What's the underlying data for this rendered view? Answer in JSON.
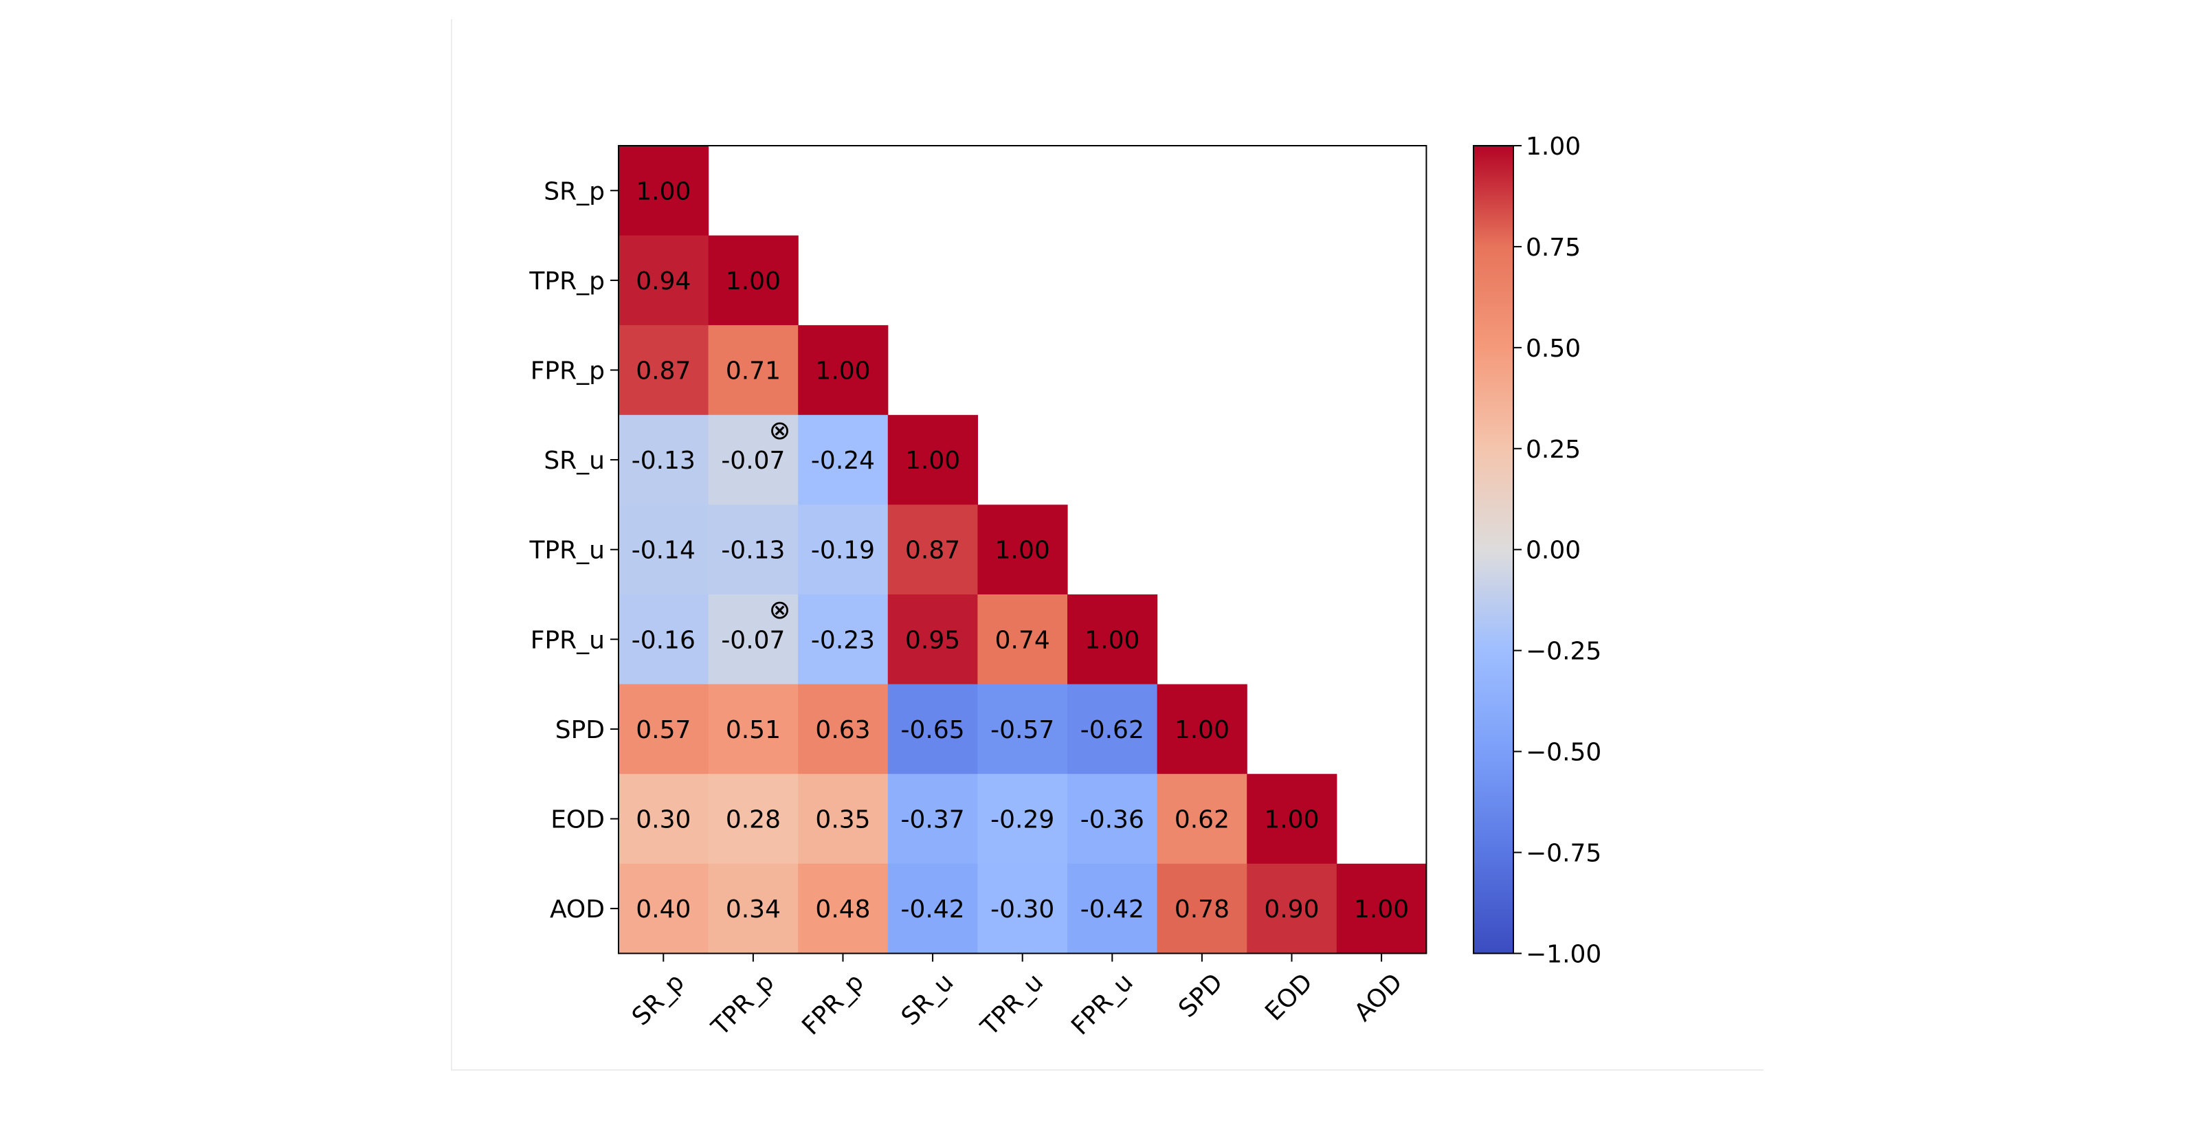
{
  "chart_data": {
    "type": "heatmap",
    "title": "",
    "xlabel": "",
    "ylabel": "",
    "labels": [
      "SR_p",
      "TPR_p",
      "FPR_p",
      "SR_u",
      "TPR_u",
      "FPR_u",
      "SPD",
      "EOD",
      "AOD"
    ],
    "matrix": [
      [
        1.0
      ],
      [
        0.94,
        1.0
      ],
      [
        0.87,
        0.71,
        1.0
      ],
      [
        -0.13,
        -0.07,
        -0.24,
        1.0
      ],
      [
        -0.14,
        -0.13,
        -0.19,
        0.87,
        1.0
      ],
      [
        -0.16,
        -0.07,
        -0.23,
        0.95,
        0.74,
        1.0
      ],
      [
        0.57,
        0.51,
        0.63,
        -0.65,
        -0.57,
        -0.62,
        1.0
      ],
      [
        0.3,
        0.28,
        0.35,
        -0.37,
        -0.29,
        -0.36,
        0.62,
        1.0
      ],
      [
        0.4,
        0.34,
        0.48,
        -0.42,
        -0.3,
        -0.42,
        0.78,
        0.9,
        1.0
      ]
    ],
    "cell_labels": [
      [
        "1.00"
      ],
      [
        "0.94",
        "1.00"
      ],
      [
        "0.87",
        "0.71",
        "1.00"
      ],
      [
        "-0.13",
        "-0.07",
        "-0.24",
        "1.00"
      ],
      [
        "-0.14",
        "-0.13",
        "-0.19",
        "0.87",
        "1.00"
      ],
      [
        "-0.16",
        "-0.07",
        "-0.23",
        "0.95",
        "0.74",
        "1.00"
      ],
      [
        "0.57",
        "0.51",
        "0.63",
        "-0.65",
        "-0.57",
        "-0.62",
        "1.00"
      ],
      [
        "0.30",
        "0.28",
        "0.35",
        "-0.37",
        "-0.29",
        "-0.36",
        "0.62",
        "1.00"
      ],
      [
        "0.40",
        "0.34",
        "0.48",
        "-0.42",
        "-0.30",
        "-0.42",
        "0.78",
        "0.90",
        "1.00"
      ]
    ],
    "markers": [
      {
        "row": 3,
        "col": 1,
        "symbol": "⊗"
      },
      {
        "row": 5,
        "col": 1,
        "symbol": "⊗"
      }
    ],
    "colormap": "coolwarm",
    "vmin": -1.0,
    "vmax": 1.0,
    "colorbar_ticks": [
      1.0,
      0.75,
      0.5,
      0.25,
      0.0,
      -0.25,
      -0.5,
      -0.75,
      -1.0
    ],
    "colorbar_tick_labels": [
      "1.00",
      "0.75",
      "0.50",
      "0.25",
      "0.00",
      "−0.25",
      "−0.50",
      "−0.75",
      "−1.00"
    ],
    "x_tick_rotation": 45,
    "grid": false
  }
}
